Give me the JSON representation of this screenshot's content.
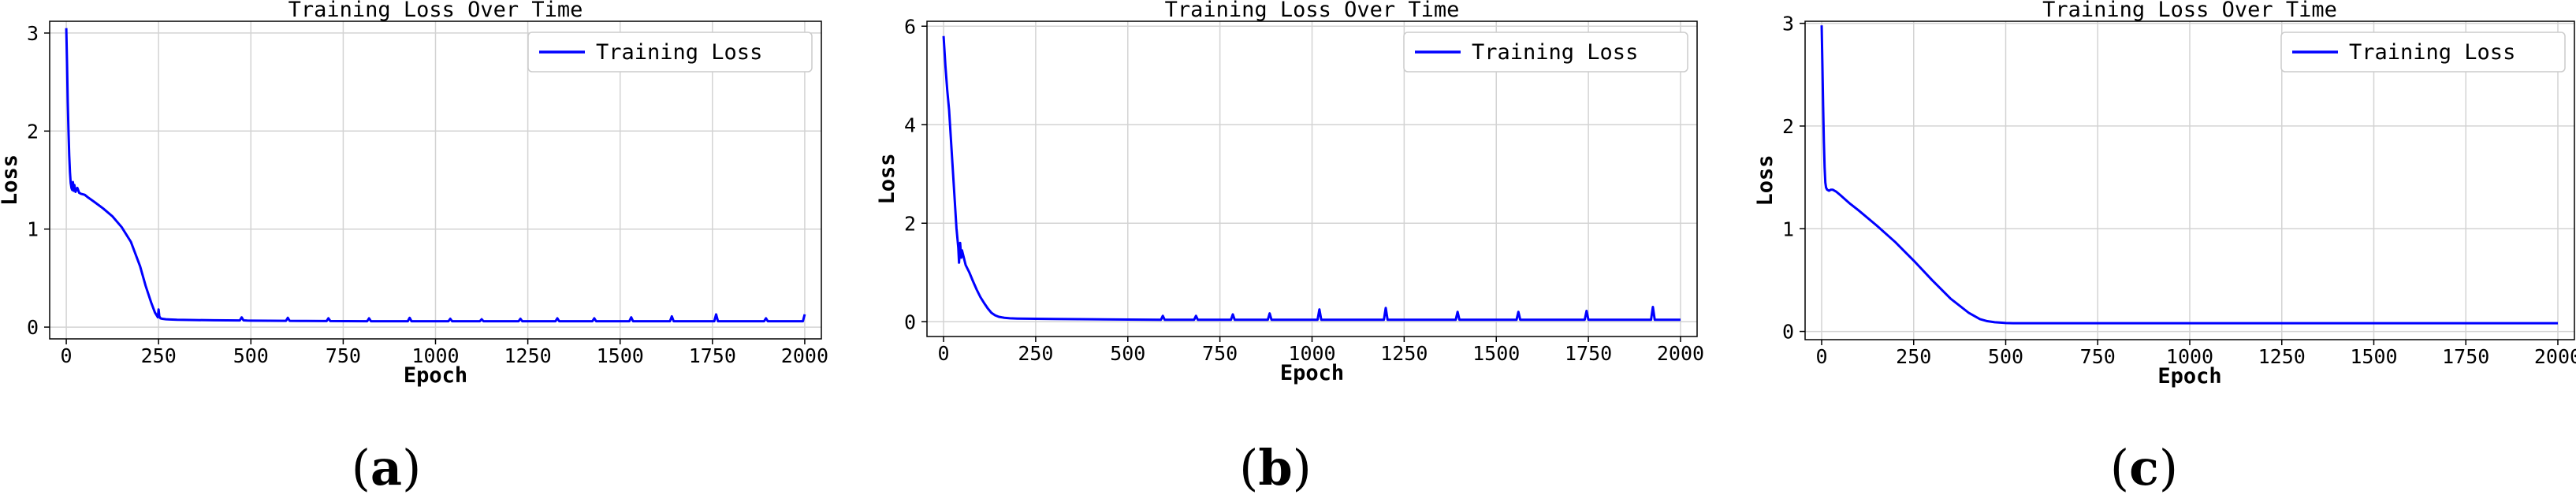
{
  "chart_data": [
    {
      "type": "line",
      "panel_label": "a",
      "title": "Training Loss Over Time",
      "xlabel": "Epoch",
      "ylabel": "Loss",
      "xlim": [
        -45,
        2045
      ],
      "ylim": [
        -0.12,
        3.12
      ],
      "xticks": [
        0,
        250,
        500,
        750,
        1000,
        1250,
        1500,
        1750,
        2000
      ],
      "yticks": [
        0,
        1,
        2,
        3
      ],
      "grid": true,
      "legend_position": "top-right",
      "series": [
        {
          "name": "Training Loss",
          "color": "#0000ff",
          "x": [
            0,
            2,
            4,
            6,
            8,
            10,
            12,
            14,
            16,
            18,
            20,
            22,
            25,
            30,
            35,
            40,
            50,
            60,
            75,
            100,
            125,
            150,
            175,
            200,
            215,
            230,
            240,
            248,
            250,
            252,
            255,
            260,
            270,
            280,
            300,
            350,
            400,
            470,
            475,
            480,
            490,
            500,
            550,
            595,
            600,
            605,
            650,
            705,
            710,
            715,
            760,
            815,
            820,
            825,
            870,
            925,
            930,
            935,
            980,
            1035,
            1040,
            1045,
            1090,
            1120,
            1125,
            1130,
            1180,
            1225,
            1230,
            1235,
            1280,
            1325,
            1330,
            1335,
            1380,
            1425,
            1430,
            1435,
            1480,
            1525,
            1530,
            1535,
            1580,
            1635,
            1640,
            1645,
            1700,
            1755,
            1760,
            1765,
            1820,
            1890,
            1895,
            1900,
            1950,
            1995,
            2000
          ],
          "y": [
            3.05,
            2.7,
            2.3,
            2.0,
            1.75,
            1.58,
            1.47,
            1.42,
            1.4,
            1.48,
            1.39,
            1.45,
            1.38,
            1.42,
            1.37,
            1.36,
            1.35,
            1.32,
            1.28,
            1.21,
            1.13,
            1.02,
            0.87,
            0.62,
            0.42,
            0.25,
            0.15,
            0.1,
            0.18,
            0.11,
            0.09,
            0.085,
            0.08,
            0.078,
            0.075,
            0.072,
            0.07,
            0.068,
            0.1,
            0.069,
            0.067,
            0.066,
            0.065,
            0.064,
            0.095,
            0.064,
            0.063,
            0.062,
            0.09,
            0.062,
            0.061,
            0.06,
            0.09,
            0.06,
            0.06,
            0.06,
            0.095,
            0.06,
            0.06,
            0.06,
            0.085,
            0.06,
            0.06,
            0.06,
            0.08,
            0.06,
            0.06,
            0.06,
            0.085,
            0.06,
            0.06,
            0.06,
            0.09,
            0.06,
            0.06,
            0.06,
            0.09,
            0.06,
            0.06,
            0.06,
            0.1,
            0.06,
            0.06,
            0.06,
            0.11,
            0.06,
            0.06,
            0.06,
            0.13,
            0.06,
            0.06,
            0.06,
            0.09,
            0.06,
            0.06,
            0.06,
            0.13
          ]
        }
      ]
    },
    {
      "type": "line",
      "panel_label": "b",
      "title": "Training Loss Over Time",
      "xlabel": "Epoch",
      "ylabel": "Loss",
      "xlim": [
        -45,
        2045
      ],
      "ylim": [
        -0.3,
        6.1
      ],
      "xticks": [
        0,
        250,
        500,
        750,
        1000,
        1250,
        1500,
        1750,
        2000
      ],
      "yticks": [
        0,
        2,
        4,
        6
      ],
      "grid": true,
      "legend_position": "top-right",
      "series": [
        {
          "name": "Training Loss",
          "color": "#0000ff",
          "x": [
            0,
            5,
            10,
            15,
            20,
            25,
            30,
            35,
            40,
            42,
            45,
            48,
            50,
            55,
            60,
            70,
            80,
            90,
            100,
            110,
            120,
            130,
            140,
            150,
            165,
            180,
            200,
            250,
            300,
            400,
            500,
            590,
            595,
            600,
            680,
            685,
            690,
            780,
            785,
            790,
            880,
            885,
            890,
            1015,
            1020,
            1025,
            1195,
            1200,
            1205,
            1390,
            1395,
            1400,
            1555,
            1560,
            1565,
            1740,
            1745,
            1750,
            1920,
            1925,
            1930,
            2000
          ],
          "y": [
            5.8,
            5.2,
            4.7,
            4.3,
            3.7,
            3.1,
            2.5,
            1.9,
            1.5,
            1.2,
            1.6,
            1.3,
            1.45,
            1.3,
            1.15,
            1.0,
            0.82,
            0.65,
            0.5,
            0.38,
            0.27,
            0.18,
            0.13,
            0.1,
            0.08,
            0.07,
            0.065,
            0.06,
            0.055,
            0.05,
            0.045,
            0.04,
            0.12,
            0.04,
            0.04,
            0.12,
            0.04,
            0.04,
            0.15,
            0.04,
            0.04,
            0.17,
            0.04,
            0.04,
            0.25,
            0.04,
            0.04,
            0.28,
            0.04,
            0.04,
            0.2,
            0.04,
            0.04,
            0.2,
            0.04,
            0.04,
            0.22,
            0.04,
            0.04,
            0.3,
            0.04,
            0.04
          ]
        }
      ]
    },
    {
      "type": "line",
      "panel_label": "c",
      "title": "Training Loss Over Time",
      "xlabel": "Epoch",
      "ylabel": "Loss",
      "xlim": [
        -45,
        2045
      ],
      "ylim": [
        -0.08,
        3.02
      ],
      "xticks": [
        0,
        250,
        500,
        750,
        1000,
        1250,
        1500,
        1750,
        2000
      ],
      "yticks": [
        0,
        1,
        2,
        3
      ],
      "grid": true,
      "legend_position": "top-right",
      "series": [
        {
          "name": "Training Loss",
          "color": "#0000ff",
          "x": [
            0,
            2,
            4,
            6,
            8,
            10,
            12,
            15,
            20,
            25,
            30,
            40,
            50,
            75,
            100,
            150,
            200,
            250,
            300,
            350,
            400,
            430,
            450,
            470,
            490,
            500,
            520,
            550,
            600,
            700,
            800,
            1000,
            1250,
            1500,
            1750,
            2000
          ],
          "y": [
            2.98,
            2.6,
            2.2,
            1.85,
            1.6,
            1.45,
            1.4,
            1.38,
            1.37,
            1.38,
            1.38,
            1.36,
            1.33,
            1.25,
            1.18,
            1.03,
            0.87,
            0.69,
            0.5,
            0.32,
            0.18,
            0.12,
            0.1,
            0.09,
            0.085,
            0.082,
            0.08,
            0.08,
            0.08,
            0.08,
            0.08,
            0.08,
            0.08,
            0.08,
            0.08,
            0.08
          ]
        }
      ]
    }
  ]
}
